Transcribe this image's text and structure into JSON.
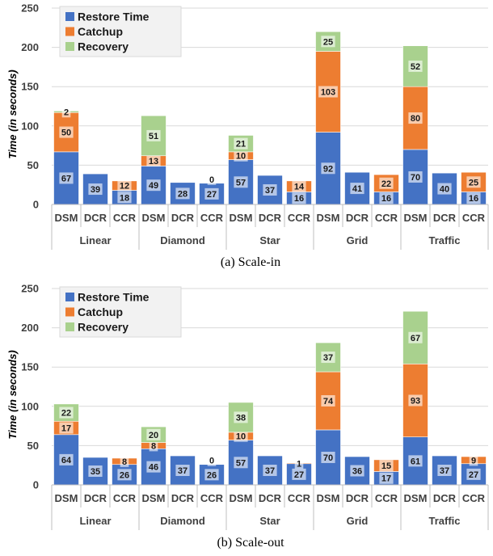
{
  "colors": {
    "restore": "#4472C4",
    "catchup": "#ED7D31",
    "recovery": "#A9D18E",
    "grid": "#D9D9D9",
    "axis": "#BFBFBF"
  },
  "chart_data": [
    {
      "type": "bar",
      "stacked": true,
      "caption": "(a) Scale-in",
      "ylabel": "Time (in seconds)",
      "ylim": [
        0,
        250
      ],
      "yticks": [
        0,
        50,
        100,
        150,
        200,
        250
      ],
      "grid": true,
      "legend_position": "top-left",
      "groups": [
        "Linear",
        "Diamond",
        "Star",
        "Grid",
        "Traffic"
      ],
      "categories": [
        "DSM",
        "DCR",
        "CCR",
        "DSM",
        "DCR",
        "CCR",
        "DSM",
        "DCR",
        "CCR",
        "DSM",
        "DCR",
        "CCR",
        "DSM",
        "DCR",
        "CCR"
      ],
      "series": [
        {
          "name": "Restore Time",
          "values": [
            67,
            39,
            18,
            49,
            28,
            27,
            57,
            37,
            16,
            92,
            41,
            16,
            70,
            40,
            16
          ]
        },
        {
          "name": "Catchup",
          "values": [
            50,
            0,
            12,
            13,
            0,
            0,
            10,
            0,
            14,
            103,
            0,
            22,
            80,
            0,
            25
          ]
        },
        {
          "name": "Recovery",
          "values": [
            2,
            0,
            0,
            51,
            0,
            0,
            21,
            0,
            0,
            25,
            0,
            0,
            52,
            0,
            0
          ]
        }
      ],
      "data_labels": [
        [
          "67",
          "39",
          "18",
          "49",
          "28",
          "27",
          "57",
          "37",
          "16",
          "92",
          "41",
          "16",
          "70",
          "40",
          "16"
        ],
        [
          "50",
          "",
          "12",
          "13",
          "",
          "0",
          "10",
          "",
          "14",
          "103",
          "",
          "22",
          "80",
          "",
          "25"
        ],
        [
          "2",
          "",
          "",
          "51",
          "",
          "",
          "21",
          "",
          "",
          "25",
          "",
          "",
          "52",
          "",
          ""
        ]
      ]
    },
    {
      "type": "bar",
      "stacked": true,
      "caption": "(b) Scale-out",
      "ylabel": "Time (in seconds)",
      "ylim": [
        0,
        250
      ],
      "yticks": [
        0,
        50,
        100,
        150,
        200,
        250
      ],
      "grid": true,
      "legend_position": "top-left",
      "groups": [
        "Linear",
        "Diamond",
        "Star",
        "Grid",
        "Traffic"
      ],
      "categories": [
        "DSM",
        "DCR",
        "CCR",
        "DSM",
        "DCR",
        "CCR",
        "DSM",
        "DCR",
        "CCR",
        "DSM",
        "DCR",
        "CCR",
        "DSM",
        "DCR",
        "CCR"
      ],
      "series": [
        {
          "name": "Restore Time",
          "values": [
            64,
            35,
            26,
            46,
            37,
            26,
            57,
            37,
            27,
            70,
            36,
            17,
            61,
            37,
            27
          ]
        },
        {
          "name": "Catchup",
          "values": [
            17,
            0,
            8,
            8,
            0,
            0,
            10,
            0,
            1,
            74,
            0,
            15,
            93,
            0,
            9
          ]
        },
        {
          "name": "Recovery",
          "values": [
            22,
            0,
            0,
            20,
            0,
            0,
            38,
            0,
            0,
            37,
            0,
            0,
            67,
            0,
            0
          ]
        }
      ],
      "data_labels": [
        [
          "64",
          "35",
          "26",
          "46",
          "37",
          "26",
          "57",
          "37",
          "27",
          "70",
          "36",
          "17",
          "61",
          "37",
          "27"
        ],
        [
          "17",
          "",
          "8",
          "8",
          "",
          "0",
          "10",
          "",
          "1",
          "74",
          "",
          "15",
          "93",
          "",
          "9"
        ],
        [
          "22",
          "",
          "",
          "20",
          "",
          "",
          "38",
          "",
          "",
          "37",
          "",
          "",
          "67",
          "",
          ""
        ]
      ]
    }
  ]
}
